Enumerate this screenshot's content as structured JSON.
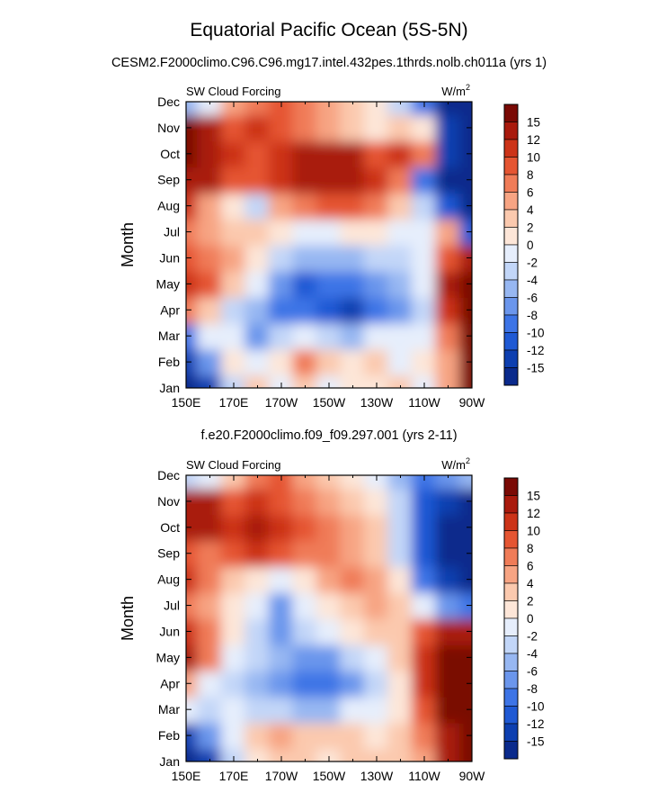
{
  "figure": {
    "title": "Equatorial Pacific Ocean (5S-5N)"
  },
  "colors": {
    "levels": [
      "#0a2a8c",
      "#0d3fb0",
      "#1f59d4",
      "#3d74e6",
      "#6b96ec",
      "#97b7f2",
      "#c2d6f8",
      "#e6eefc",
      "#fde6d8",
      "#fbc9ae",
      "#f7a483",
      "#f07c58",
      "#e55532",
      "#cc3318",
      "#a91a0d",
      "#7a0a05"
    ]
  },
  "chart_data": [
    {
      "type": "heatmap",
      "panel_title": "CESM2.F2000climo.C96.C96.mg17.intel.432pes.1thrds.nolb.ch011a (yrs 1)",
      "left_label": "SW Cloud Forcing",
      "units_base": "W/m",
      "units_exp": "2",
      "ylabel": "Month",
      "x_ticks": [
        "150E",
        "170E",
        "170W",
        "150W",
        "130W",
        "110W",
        "90W"
      ],
      "y_ticks": [
        "Jan",
        "Feb",
        "Mar",
        "Apr",
        "May",
        "Jun",
        "Jul",
        "Aug",
        "Sep",
        "Oct",
        "Nov",
        "Dec"
      ],
      "colorbar_labels": [
        "15",
        "12",
        "10",
        "8",
        "6",
        "4",
        "2",
        "0",
        "-2",
        "-4",
        "-6",
        "-8",
        "-10",
        "-12",
        "-15"
      ],
      "x": [
        150,
        160,
        170,
        180,
        190,
        200,
        210,
        220,
        230,
        240,
        250,
        260,
        270
      ],
      "values": [
        [
          -16,
          -14,
          -4,
          2,
          -2,
          2,
          -2,
          0,
          0,
          2,
          -2,
          4,
          16
        ],
        [
          -14,
          -8,
          0,
          -2,
          0,
          6,
          2,
          0,
          2,
          -2,
          0,
          4,
          16
        ],
        [
          -10,
          -2,
          -2,
          -8,
          -4,
          -2,
          -4,
          -6,
          -2,
          -2,
          -2,
          6,
          16
        ],
        [
          6,
          2,
          -4,
          -6,
          -10,
          -10,
          -12,
          -13,
          -10,
          -8,
          -4,
          10,
          16
        ],
        [
          10,
          8,
          2,
          -2,
          -8,
          -12,
          -10,
          -9,
          -8,
          -6,
          -2,
          12,
          16
        ],
        [
          8,
          6,
          4,
          0,
          -4,
          -6,
          -6,
          -6,
          -4,
          -4,
          -2,
          8,
          14
        ],
        [
          6,
          4,
          2,
          2,
          0,
          -2,
          -2,
          0,
          0,
          -2,
          -2,
          4,
          -12
        ],
        [
          10,
          4,
          0,
          -3,
          4,
          6,
          8,
          8,
          6,
          2,
          -4,
          -12,
          -16
        ],
        [
          14,
          12,
          8,
          8,
          10,
          12,
          14,
          12,
          10,
          6,
          -10,
          -16,
          -16
        ],
        [
          16,
          14,
          10,
          8,
          10,
          12,
          14,
          12,
          8,
          10,
          6,
          -14,
          -16
        ],
        [
          16,
          12,
          8,
          10,
          8,
          6,
          4,
          2,
          0,
          2,
          0,
          -14,
          -16
        ],
        [
          -6,
          -2,
          4,
          6,
          8,
          6,
          4,
          2,
          0,
          -4,
          -10,
          -16,
          -16
        ]
      ]
    },
    {
      "type": "heatmap",
      "panel_title": "f.e20.F2000climo.f09_f09.297.001 (yrs 2-11)",
      "left_label": "SW Cloud Forcing",
      "units_base": "W/m",
      "units_exp": "2",
      "ylabel": "Month",
      "x_ticks": [
        "150E",
        "170E",
        "170W",
        "150W",
        "130W",
        "110W",
        "90W"
      ],
      "y_ticks": [
        "Jan",
        "Feb",
        "Mar",
        "Apr",
        "May",
        "Jun",
        "Jul",
        "Aug",
        "Sep",
        "Oct",
        "Nov",
        "Dec"
      ],
      "colorbar_labels": [
        "15",
        "12",
        "10",
        "8",
        "6",
        "4",
        "2",
        "0",
        "-2",
        "-4",
        "-6",
        "-8",
        "-10",
        "-12",
        "-15"
      ],
      "x": [
        150,
        160,
        170,
        180,
        190,
        200,
        210,
        220,
        230,
        240,
        250,
        260,
        270
      ],
      "values": [
        [
          -16,
          -14,
          -4,
          0,
          2,
          2,
          0,
          2,
          2,
          2,
          4,
          14,
          16
        ],
        [
          -14,
          -8,
          -2,
          2,
          4,
          2,
          2,
          2,
          0,
          2,
          6,
          14,
          16
        ],
        [
          -2,
          -4,
          -2,
          -4,
          -4,
          -6,
          -6,
          -2,
          -2,
          0,
          8,
          16,
          16
        ],
        [
          4,
          -2,
          -4,
          -6,
          -8,
          -10,
          -10,
          -8,
          -4,
          0,
          10,
          16,
          16
        ],
        [
          12,
          6,
          -2,
          -4,
          -6,
          -8,
          -8,
          -4,
          -2,
          2,
          10,
          16,
          16
        ],
        [
          10,
          6,
          0,
          -4,
          -8,
          -4,
          -2,
          0,
          2,
          2,
          8,
          12,
          14
        ],
        [
          6,
          4,
          0,
          -2,
          -8,
          -2,
          0,
          2,
          4,
          2,
          -2,
          -8,
          -10
        ],
        [
          10,
          6,
          2,
          0,
          -2,
          0,
          4,
          6,
          4,
          0,
          -10,
          -14,
          -16
        ],
        [
          8,
          6,
          8,
          10,
          8,
          6,
          6,
          4,
          2,
          -4,
          -12,
          -16,
          -16
        ],
        [
          14,
          12,
          10,
          12,
          10,
          8,
          6,
          4,
          2,
          -4,
          -12,
          -16,
          -16
        ],
        [
          14,
          12,
          8,
          10,
          8,
          6,
          4,
          2,
          0,
          -4,
          -12,
          -14,
          -16
        ],
        [
          -4,
          -2,
          2,
          6,
          8,
          4,
          2,
          0,
          -2,
          -6,
          -10,
          -8,
          -6
        ]
      ]
    }
  ]
}
